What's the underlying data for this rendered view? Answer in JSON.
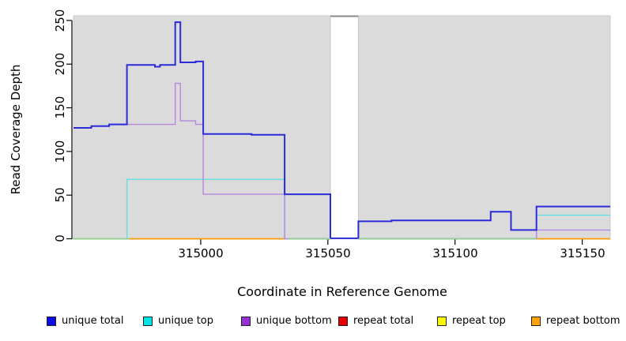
{
  "figure": {
    "y_axis_label": "Read Coverage Depth",
    "x_axis_label": "Coordinate in Reference Genome",
    "y_tick_labels": [
      "0",
      "50",
      "100",
      "150",
      "200",
      "250"
    ],
    "x_tick_labels": [
      "315000",
      "315050",
      "315100",
      "315150"
    ]
  },
  "legend": {
    "position": "bottom",
    "items": [
      {
        "label": "unique total",
        "color": "#0d0de0"
      },
      {
        "label": "unique top",
        "color": "#00e4e8"
      },
      {
        "label": "unique bottom",
        "color": "#9a2fd2"
      },
      {
        "label": "repeat total",
        "color": "#e60000"
      },
      {
        "label": "repeat top",
        "color": "#fdfd00"
      },
      {
        "label": "repeat bottom",
        "color": "#ffa300"
      }
    ]
  },
  "chart_data": {
    "type": "line",
    "title": "",
    "xlabel": "Coordinate in Reference Genome",
    "ylabel": "Read Coverage Depth",
    "xlim": [
      314950,
      315161
    ],
    "ylim": [
      0,
      255
    ],
    "x_ticks": [
      315000,
      315050,
      315100,
      315150
    ],
    "y_ticks": [
      0,
      50,
      100,
      150,
      200,
      250
    ],
    "grid": false,
    "plot_background": "#dbdbdb",
    "panel_border": "#c9c9c9",
    "gap_region": {
      "x_start": 315051,
      "x_end": 315062,
      "top_bar_color": "#8a8a8a"
    },
    "series": [
      {
        "name": "repeat total",
        "color": "#e60000",
        "width": 1.2,
        "segments": [
          [
            314950,
            315051,
            0
          ],
          [
            315062,
            315161,
            0
          ]
        ]
      },
      {
        "name": "repeat top",
        "color": "#fdfd00",
        "width": 1.2,
        "segments": [
          [
            314950,
            315051,
            0
          ],
          [
            315062,
            315161,
            0
          ]
        ]
      },
      {
        "name": "repeat bottom",
        "color": "#ff9d00",
        "width": 1.4,
        "segments": [
          [
            314950,
            315051,
            0
          ],
          [
            315062,
            315161,
            0
          ]
        ]
      },
      {
        "name": "unique top",
        "color": "#63dce2",
        "width": 1.4,
        "segments": [
          [
            314950,
            314971,
            0
          ],
          [
            314971,
            315033,
            68
          ],
          [
            315033,
            315051,
            0
          ],
          [
            315062,
            315132,
            0
          ],
          [
            315132,
            315161,
            27
          ]
        ]
      },
      {
        "name": "unique bottom",
        "color": "#b787dd",
        "width": 1.4,
        "segments": [
          [
            314950,
            314957,
            127
          ],
          [
            314957,
            314964,
            129
          ],
          [
            314964,
            314990,
            131
          ],
          [
            314990,
            314992,
            178
          ],
          [
            314992,
            314998,
            135
          ],
          [
            314998,
            315001,
            131
          ],
          [
            315001,
            315033,
            51
          ],
          [
            315033,
            315051,
            0
          ],
          [
            315062,
            315132,
            0
          ],
          [
            315132,
            315161,
            10
          ]
        ]
      },
      {
        "name": "unique total",
        "color": "#2b2bd9",
        "width": 2,
        "segments": [
          [
            314950,
            314957,
            127
          ],
          [
            314957,
            314964,
            129
          ],
          [
            314964,
            314971,
            131
          ],
          [
            314971,
            314982,
            199
          ],
          [
            314982,
            314984,
            197
          ],
          [
            314984,
            314990,
            199
          ],
          [
            314990,
            314992,
            248
          ],
          [
            314992,
            314998,
            202
          ],
          [
            314998,
            315001,
            203
          ],
          [
            315001,
            315020,
            120
          ],
          [
            315020,
            315033,
            119
          ],
          [
            315033,
            315051,
            51
          ],
          [
            315051,
            315062,
            0.5
          ],
          [
            315062,
            315075,
            20
          ],
          [
            315075,
            315114,
            21
          ],
          [
            315114,
            315122,
            31
          ],
          [
            315122,
            315132,
            10
          ],
          [
            315132,
            315161,
            37
          ]
        ]
      }
    ],
    "zero_line_blend": {
      "note": "zero line appears green where unique-top overlaps repeat lines at 0",
      "color": "#8fd394",
      "segments": [
        [
          314950,
          314972
        ],
        [
          315034,
          315051
        ],
        [
          315062,
          315132
        ]
      ]
    }
  }
}
